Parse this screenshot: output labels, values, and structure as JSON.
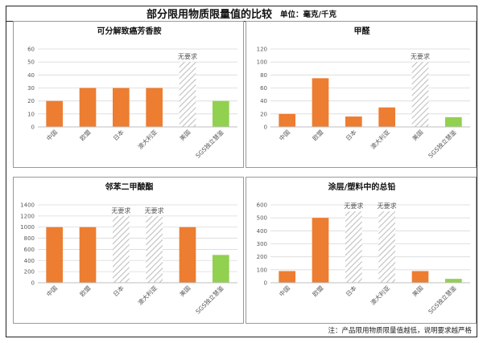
{
  "header": {
    "title": "部分限用物质限量值的比较",
    "unit": "单位：毫克/千克"
  },
  "footnote": "注：产品限用物质限量值越低，说明要求越严格",
  "no_requirement_label": "无要求",
  "colors": {
    "bar": "#ED7D31",
    "sgs": "#92D050",
    "hatch": "#BFBFBF",
    "grid": "#D9D9D9",
    "axis_text": "#595959"
  },
  "chart_data": [
    {
      "type": "bar",
      "title": "可分解致癌芳香胺",
      "categories": [
        "中国",
        "欧盟",
        "日本",
        "澳大利亚",
        "美国",
        "SGS独立慧鉴"
      ],
      "values": [
        20,
        30,
        30,
        30,
        50,
        20
      ],
      "no_requirement": [
        false,
        false,
        false,
        false,
        true,
        false
      ],
      "ylim": [
        0,
        60
      ],
      "yticks": [
        0,
        10,
        20,
        30,
        40,
        50,
        60
      ],
      "grid": true
    },
    {
      "type": "bar",
      "title": "甲醛",
      "categories": [
        "中国",
        "欧盟",
        "日本",
        "澳大利亚",
        "美国",
        "SGS独立慧鉴"
      ],
      "values": [
        20,
        75,
        16,
        30,
        100,
        15
      ],
      "no_requirement": [
        false,
        false,
        false,
        false,
        true,
        false
      ],
      "ylim": [
        0,
        120
      ],
      "yticks": [
        0,
        20,
        40,
        60,
        80,
        100,
        120
      ],
      "grid": true
    },
    {
      "type": "bar",
      "title": "邻苯二甲酸酯",
      "categories": [
        "中国",
        "欧盟",
        "日本",
        "澳大利亚",
        "美国",
        "SGS独立慧鉴"
      ],
      "values": [
        1000,
        1000,
        1200,
        1200,
        1000,
        500
      ],
      "no_requirement": [
        false,
        false,
        true,
        true,
        false,
        false
      ],
      "ylim": [
        0,
        1400
      ],
      "yticks": [
        0,
        200,
        400,
        600,
        800,
        1000,
        1200,
        1400
      ],
      "grid": true
    },
    {
      "type": "bar",
      "title": "涂层/塑料中的总铅",
      "categories": [
        "中国",
        "欧盟",
        "日本",
        "澳大利亚",
        "美国",
        "SGS独立慧鉴"
      ],
      "values": [
        90,
        500,
        550,
        550,
        90,
        30
      ],
      "no_requirement": [
        false,
        false,
        true,
        true,
        false,
        false
      ],
      "ylim": [
        0,
        600
      ],
      "yticks": [
        0,
        100,
        200,
        300,
        400,
        500,
        600
      ],
      "grid": true
    }
  ]
}
